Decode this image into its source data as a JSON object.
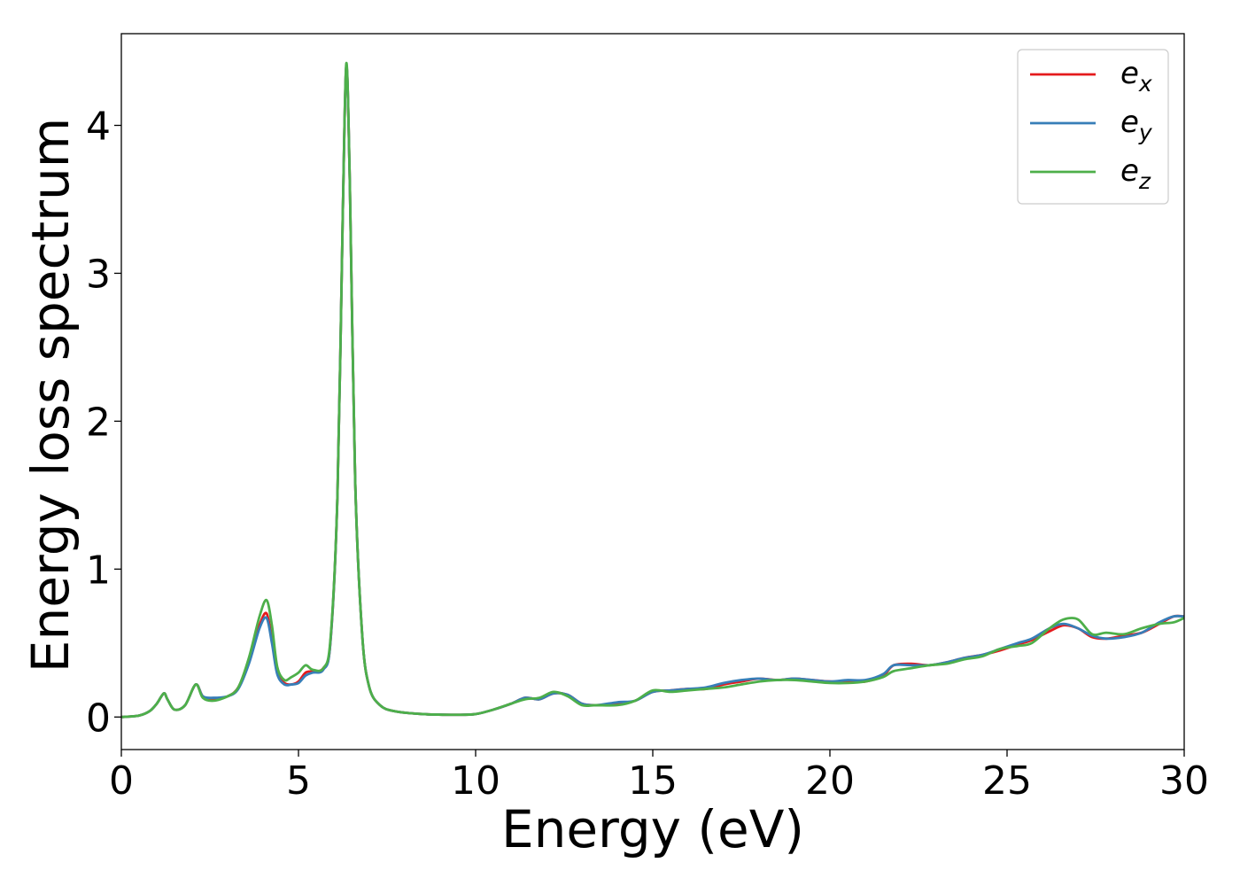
{
  "chart_data": {
    "type": "line",
    "xlabel": "Energy (eV)",
    "ylabel": "Energy loss spectrum",
    "xlim": [
      0,
      30
    ],
    "ylim": [
      -0.22,
      4.62
    ],
    "xticks": [
      0,
      5,
      10,
      15,
      20,
      25,
      30
    ],
    "yticks": [
      0,
      1,
      2,
      3,
      4
    ],
    "grid": false,
    "legend_position": "top-right",
    "series": [
      {
        "name": "e_x",
        "legend": {
          "base": "e",
          "sub": "x"
        },
        "color": "#e41a1c",
        "points": [
          [
            0,
            0.0
          ],
          [
            0.5,
            0.01
          ],
          [
            0.8,
            0.04
          ],
          [
            1.0,
            0.09
          ],
          [
            1.2,
            0.16
          ],
          [
            1.3,
            0.12
          ],
          [
            1.5,
            0.05
          ],
          [
            1.8,
            0.08
          ],
          [
            2.1,
            0.22
          ],
          [
            2.3,
            0.14
          ],
          [
            2.6,
            0.12
          ],
          [
            3.0,
            0.14
          ],
          [
            3.3,
            0.2
          ],
          [
            3.6,
            0.38
          ],
          [
            3.9,
            0.62
          ],
          [
            4.1,
            0.7
          ],
          [
            4.25,
            0.52
          ],
          [
            4.4,
            0.3
          ],
          [
            4.6,
            0.23
          ],
          [
            4.8,
            0.22
          ],
          [
            5.0,
            0.24
          ],
          [
            5.2,
            0.3
          ],
          [
            5.4,
            0.31
          ],
          [
            5.7,
            0.33
          ],
          [
            5.9,
            0.5
          ],
          [
            6.1,
            1.5
          ],
          [
            6.25,
            3.4
          ],
          [
            6.35,
            4.4
          ],
          [
            6.45,
            3.6
          ],
          [
            6.6,
            1.6
          ],
          [
            6.8,
            0.55
          ],
          [
            7.0,
            0.2
          ],
          [
            7.3,
            0.08
          ],
          [
            7.7,
            0.04
          ],
          [
            8.5,
            0.02
          ],
          [
            9.5,
            0.015
          ],
          [
            10.0,
            0.02
          ],
          [
            10.5,
            0.05
          ],
          [
            11.0,
            0.09
          ],
          [
            11.4,
            0.13
          ],
          [
            11.8,
            0.12
          ],
          [
            12.2,
            0.16
          ],
          [
            12.6,
            0.15
          ],
          [
            13.0,
            0.09
          ],
          [
            13.4,
            0.08
          ],
          [
            14.0,
            0.09
          ],
          [
            14.5,
            0.11
          ],
          [
            15.0,
            0.17
          ],
          [
            15.5,
            0.18
          ],
          [
            16.0,
            0.19
          ],
          [
            16.5,
            0.19
          ],
          [
            17.0,
            0.22
          ],
          [
            17.5,
            0.24
          ],
          [
            18.0,
            0.26
          ],
          [
            18.5,
            0.25
          ],
          [
            19.0,
            0.26
          ],
          [
            19.5,
            0.25
          ],
          [
            20.0,
            0.24
          ],
          [
            20.5,
            0.24
          ],
          [
            21.0,
            0.24
          ],
          [
            21.5,
            0.28
          ],
          [
            21.8,
            0.35
          ],
          [
            22.3,
            0.36
          ],
          [
            22.8,
            0.35
          ],
          [
            23.3,
            0.37
          ],
          [
            23.8,
            0.4
          ],
          [
            24.3,
            0.42
          ],
          [
            24.8,
            0.45
          ],
          [
            25.3,
            0.49
          ],
          [
            25.7,
            0.52
          ],
          [
            26.2,
            0.58
          ],
          [
            26.6,
            0.62
          ],
          [
            27.0,
            0.6
          ],
          [
            27.4,
            0.54
          ],
          [
            27.8,
            0.53
          ],
          [
            28.3,
            0.55
          ],
          [
            28.8,
            0.57
          ],
          [
            29.3,
            0.63
          ],
          [
            29.7,
            0.68
          ],
          [
            30.0,
            0.68
          ]
        ]
      },
      {
        "name": "e_y",
        "legend": {
          "base": "e",
          "sub": "y"
        },
        "color": "#377eb8",
        "points": [
          [
            0,
            0.0
          ],
          [
            0.5,
            0.01
          ],
          [
            0.8,
            0.04
          ],
          [
            1.0,
            0.09
          ],
          [
            1.2,
            0.16
          ],
          [
            1.3,
            0.12
          ],
          [
            1.5,
            0.05
          ],
          [
            1.8,
            0.08
          ],
          [
            2.1,
            0.22
          ],
          [
            2.3,
            0.14
          ],
          [
            2.6,
            0.13
          ],
          [
            3.0,
            0.14
          ],
          [
            3.3,
            0.19
          ],
          [
            3.6,
            0.36
          ],
          [
            3.9,
            0.6
          ],
          [
            4.1,
            0.67
          ],
          [
            4.25,
            0.5
          ],
          [
            4.4,
            0.29
          ],
          [
            4.6,
            0.22
          ],
          [
            4.8,
            0.22
          ],
          [
            5.0,
            0.23
          ],
          [
            5.2,
            0.28
          ],
          [
            5.4,
            0.3
          ],
          [
            5.7,
            0.32
          ],
          [
            5.9,
            0.5
          ],
          [
            6.1,
            1.5
          ],
          [
            6.25,
            3.4
          ],
          [
            6.35,
            4.4
          ],
          [
            6.45,
            3.6
          ],
          [
            6.6,
            1.6
          ],
          [
            6.8,
            0.55
          ],
          [
            7.0,
            0.2
          ],
          [
            7.3,
            0.08
          ],
          [
            7.7,
            0.04
          ],
          [
            8.5,
            0.02
          ],
          [
            9.5,
            0.015
          ],
          [
            10.0,
            0.02
          ],
          [
            10.5,
            0.05
          ],
          [
            11.0,
            0.09
          ],
          [
            11.4,
            0.13
          ],
          [
            11.8,
            0.12
          ],
          [
            12.2,
            0.16
          ],
          [
            12.6,
            0.15
          ],
          [
            13.0,
            0.09
          ],
          [
            13.4,
            0.08
          ],
          [
            14.0,
            0.1
          ],
          [
            14.5,
            0.11
          ],
          [
            15.0,
            0.17
          ],
          [
            15.5,
            0.18
          ],
          [
            16.0,
            0.19
          ],
          [
            16.5,
            0.2
          ],
          [
            17.0,
            0.23
          ],
          [
            17.5,
            0.25
          ],
          [
            18.0,
            0.26
          ],
          [
            18.5,
            0.25
          ],
          [
            19.0,
            0.26
          ],
          [
            19.5,
            0.25
          ],
          [
            20.0,
            0.24
          ],
          [
            20.5,
            0.25
          ],
          [
            21.0,
            0.25
          ],
          [
            21.5,
            0.29
          ],
          [
            21.8,
            0.35
          ],
          [
            22.3,
            0.35
          ],
          [
            22.8,
            0.35
          ],
          [
            23.3,
            0.37
          ],
          [
            23.8,
            0.4
          ],
          [
            24.3,
            0.42
          ],
          [
            24.8,
            0.46
          ],
          [
            25.3,
            0.5
          ],
          [
            25.7,
            0.53
          ],
          [
            26.2,
            0.6
          ],
          [
            26.6,
            0.63
          ],
          [
            27.0,
            0.6
          ],
          [
            27.4,
            0.55
          ],
          [
            27.8,
            0.53
          ],
          [
            28.3,
            0.54
          ],
          [
            28.8,
            0.57
          ],
          [
            29.3,
            0.64
          ],
          [
            29.7,
            0.68
          ],
          [
            30.0,
            0.68
          ]
        ]
      },
      {
        "name": "e_z",
        "legend": {
          "base": "e",
          "sub": "z"
        },
        "color": "#4daf4a",
        "points": [
          [
            0,
            0.0
          ],
          [
            0.5,
            0.01
          ],
          [
            0.8,
            0.04
          ],
          [
            1.0,
            0.09
          ],
          [
            1.2,
            0.16
          ],
          [
            1.3,
            0.12
          ],
          [
            1.5,
            0.05
          ],
          [
            1.8,
            0.08
          ],
          [
            2.1,
            0.22
          ],
          [
            2.3,
            0.13
          ],
          [
            2.6,
            0.11
          ],
          [
            3.0,
            0.14
          ],
          [
            3.3,
            0.2
          ],
          [
            3.6,
            0.4
          ],
          [
            3.9,
            0.68
          ],
          [
            4.1,
            0.79
          ],
          [
            4.25,
            0.62
          ],
          [
            4.4,
            0.34
          ],
          [
            4.6,
            0.25
          ],
          [
            4.8,
            0.27
          ],
          [
            5.0,
            0.3
          ],
          [
            5.2,
            0.35
          ],
          [
            5.4,
            0.32
          ],
          [
            5.7,
            0.33
          ],
          [
            5.9,
            0.52
          ],
          [
            6.1,
            1.5
          ],
          [
            6.25,
            3.4
          ],
          [
            6.35,
            4.42
          ],
          [
            6.45,
            3.6
          ],
          [
            6.6,
            1.6
          ],
          [
            6.8,
            0.55
          ],
          [
            7.0,
            0.2
          ],
          [
            7.3,
            0.08
          ],
          [
            7.7,
            0.04
          ],
          [
            8.5,
            0.02
          ],
          [
            9.5,
            0.015
          ],
          [
            10.0,
            0.02
          ],
          [
            10.5,
            0.05
          ],
          [
            11.0,
            0.09
          ],
          [
            11.4,
            0.12
          ],
          [
            11.8,
            0.13
          ],
          [
            12.2,
            0.17
          ],
          [
            12.6,
            0.14
          ],
          [
            13.0,
            0.08
          ],
          [
            13.4,
            0.08
          ],
          [
            14.0,
            0.08
          ],
          [
            14.5,
            0.11
          ],
          [
            15.0,
            0.18
          ],
          [
            15.5,
            0.17
          ],
          [
            16.0,
            0.18
          ],
          [
            16.5,
            0.19
          ],
          [
            17.0,
            0.2
          ],
          [
            17.5,
            0.22
          ],
          [
            18.0,
            0.24
          ],
          [
            18.5,
            0.25
          ],
          [
            19.0,
            0.25
          ],
          [
            19.5,
            0.24
          ],
          [
            20.0,
            0.23
          ],
          [
            20.5,
            0.23
          ],
          [
            21.0,
            0.24
          ],
          [
            21.5,
            0.27
          ],
          [
            21.8,
            0.31
          ],
          [
            22.3,
            0.33
          ],
          [
            22.8,
            0.35
          ],
          [
            23.3,
            0.36
          ],
          [
            23.8,
            0.39
          ],
          [
            24.3,
            0.41
          ],
          [
            24.8,
            0.46
          ],
          [
            25.3,
            0.48
          ],
          [
            25.7,
            0.5
          ],
          [
            26.2,
            0.6
          ],
          [
            26.6,
            0.66
          ],
          [
            27.0,
            0.66
          ],
          [
            27.4,
            0.56
          ],
          [
            27.8,
            0.57
          ],
          [
            28.3,
            0.56
          ],
          [
            28.8,
            0.6
          ],
          [
            29.3,
            0.63
          ],
          [
            29.7,
            0.64
          ],
          [
            30.0,
            0.67
          ]
        ]
      }
    ]
  }
}
